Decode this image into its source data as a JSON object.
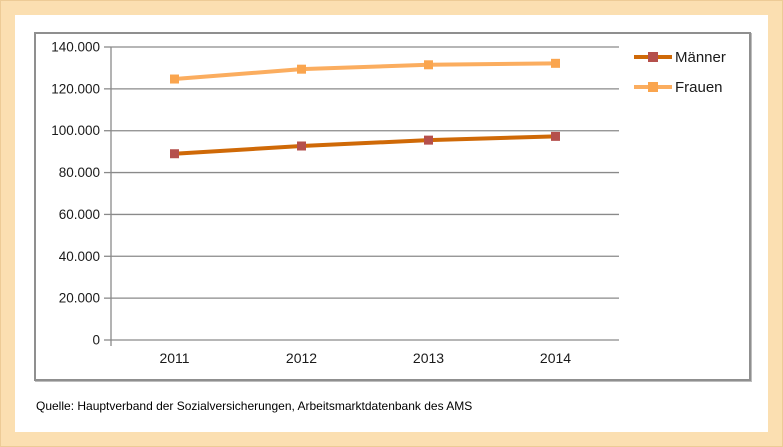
{
  "source_note": "Quelle: Hauptverband der Sozialversicherungen, Arbeitsmarktdatenbank des AMS",
  "colors": {
    "page_background": "#FBDFB1",
    "plot_background": "#FFFFFF",
    "gridline": "#8a8a8a",
    "frame_border": "#8f8f8f",
    "text": "#1a1a1a"
  },
  "chart_data": {
    "type": "line",
    "categories": [
      "2011",
      "2012",
      "2013",
      "2014"
    ],
    "series": [
      {
        "name": "Männer",
        "values": [
          89000,
          92700,
          95500,
          97300
        ],
        "line_color": "#CF6907",
        "marker_color": "#B5504C",
        "marker": "square"
      },
      {
        "name": "Frauen",
        "values": [
          124700,
          129400,
          131500,
          132200
        ],
        "line_color": "#FBAD5F",
        "marker_color": "#FAA54E",
        "marker": "square"
      }
    ],
    "ylim": [
      0,
      140000
    ],
    "ytick_step": 20000,
    "ytick_labels": [
      "0",
      "20.000",
      "40.000",
      "60.000",
      "80.000",
      "100.000",
      "120.000",
      "140.000"
    ],
    "grid": true,
    "legend_position": "right"
  }
}
